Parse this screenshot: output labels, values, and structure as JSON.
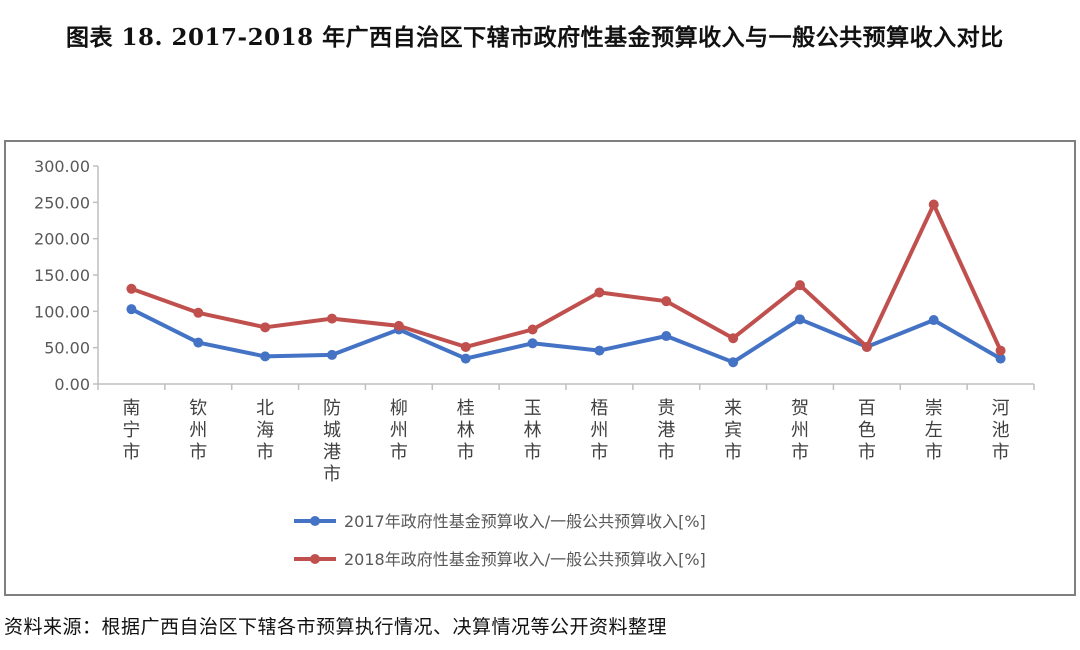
{
  "figure": {
    "title": "图表 18.   2017-2018 年广西自治区下辖市政府性基金预算收入与一般公共预算收入对比",
    "source": "资料来源：根据广西自治区下辖各市预算执行情况、决算情况等公开资料整理"
  },
  "chart_data": {
    "type": "line",
    "title": "",
    "xlabel": "",
    "ylabel": "",
    "categories": [
      "南宁市",
      "钦州市",
      "北海市",
      "防城港市",
      "柳州市",
      "桂林市",
      "玉林市",
      "梧州市",
      "贵港市",
      "来宾市",
      "贺州市",
      "百色市",
      "崇左市",
      "河池市"
    ],
    "y_ticks": [
      "300.00",
      "250.00",
      "200.00",
      "150.00",
      "100.00",
      "50.00",
      "0.00"
    ],
    "ylim": [
      0,
      300
    ],
    "grid": false,
    "legend_position": "bottom",
    "series": [
      {
        "name": "2017年政府性基金预算收入/一般公共预算收入[%]",
        "color": "#4472c4",
        "values": [
          103,
          57,
          38,
          40,
          75,
          35,
          56,
          46,
          66,
          30,
          89,
          51,
          88,
          35
        ]
      },
      {
        "name": "2018年政府性基金预算收入/一般公共预算收入[%]",
        "color": "#c0504d",
        "values": [
          131,
          98,
          78,
          90,
          80,
          51,
          75,
          126,
          114,
          63,
          136,
          51,
          247,
          46
        ]
      }
    ]
  }
}
